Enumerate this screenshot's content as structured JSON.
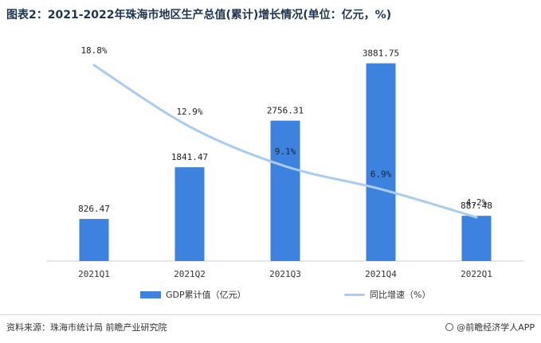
{
  "title": "图表2：2021-2022年珠海市地区生产总值(累计)增长情况(单位：亿元，%)",
  "chart_data": {
    "type": "bar",
    "categories": [
      "2021Q1",
      "2021Q2",
      "2021Q3",
      "2021Q4",
      "2022Q1"
    ],
    "series": [
      {
        "name": "GDP累计值（亿元）",
        "type": "bar",
        "values": [
          826.47,
          1841.47,
          2756.31,
          3881.75,
          887.48
        ],
        "labels": [
          "826.47",
          "1841.47",
          "2756.31",
          "3881.75",
          "887.48"
        ],
        "color": "#3e82df"
      },
      {
        "name": "同比增速（%）",
        "type": "line",
        "values": [
          18.8,
          12.9,
          9.1,
          6.9,
          4.2
        ],
        "labels": [
          "18.8%",
          "12.9%",
          "9.1%",
          "6.9%",
          "4.2%"
        ],
        "color": "#a9ccf2"
      }
    ],
    "bar_ylim": [
      0,
      4500
    ],
    "line_ylim": [
      0,
      22
    ],
    "grid": false,
    "legend_position": "bottom"
  },
  "legend": {
    "bar_label": "GDP累计值（亿元）",
    "line_label": "同比增速（%）"
  },
  "footer": {
    "source": "资料来源：珠海市统计局 前瞻产业研究院",
    "brand": "@前瞻经济学人APP"
  }
}
